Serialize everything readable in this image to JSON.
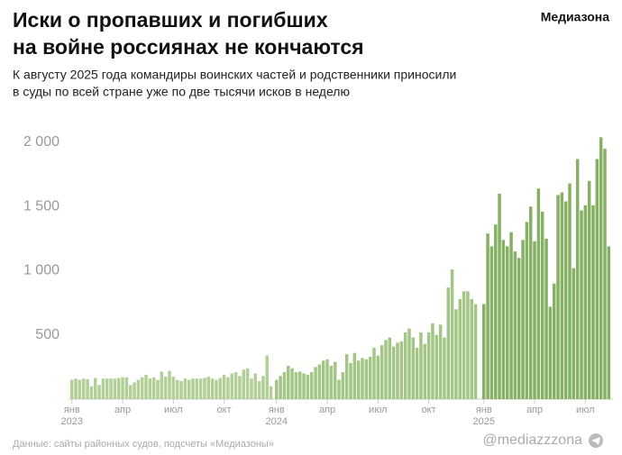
{
  "chart_data": {
    "type": "bar",
    "title": [
      "Иски о пропавших и погибших",
      "на войне россиянах не кончаются"
    ],
    "subtitle": [
      "К августу 2025 года командиры воинских частей и родственники приносили",
      "в суды по всей стране уже по две тысячи исков в неделю"
    ],
    "brand": "Медиазона",
    "source": "Данные: сайты районных судов, подсчеты «Медиазоны»",
    "handle": "@mediazzzona",
    "ylim": [
      0,
      2000
    ],
    "yticks": [
      {
        "value": 500,
        "label": "500"
      },
      {
        "value": 1000,
        "label": "1 000"
      },
      {
        "value": 1500,
        "label": "1 500"
      },
      {
        "value": 2000,
        "label": "2 000"
      }
    ],
    "series": [
      {
        "year": "2023",
        "color": "#b3cf98",
        "months": [
          "янв",
          "апр",
          "июл",
          "окт"
        ],
        "values": [
          150,
          160,
          150,
          160,
          155,
          100,
          165,
          110,
          160,
          160,
          160,
          160,
          165,
          170,
          170,
          110,
          130,
          150,
          170,
          190,
          160,
          170,
          150,
          215,
          175,
          220,
          175,
          150,
          140,
          160,
          150,
          160,
          160,
          160,
          165,
          175,
          160,
          150,
          165,
          190,
          170,
          200,
          210,
          180,
          230,
          240,
          160,
          200,
          140,
          180,
          340,
          100
        ]
      },
      {
        "year": "2024",
        "color": "#a3c585",
        "months": [
          "янв",
          "апр",
          "июл",
          "окт"
        ],
        "values": [
          150,
          180,
          210,
          260,
          240,
          210,
          215,
          200,
          190,
          210,
          250,
          270,
          300,
          310,
          260,
          290,
          150,
          210,
          350,
          280,
          360,
          300,
          320,
          310,
          330,
          400,
          340,
          420,
          460,
          480,
          410,
          440,
          450,
          520,
          550,
          480,
          400,
          520,
          430,
          520,
          590,
          500,
          580,
          480,
          870,
          1010,
          700,
          780,
          840,
          840,
          780,
          740
        ]
      },
      {
        "year": "2025",
        "color": "#86b063",
        "months": [
          "янв",
          "апр",
          "июл"
        ],
        "values": [
          740,
          1290,
          1190,
          1360,
          1600,
          1240,
          1190,
          1300,
          1150,
          1100,
          1240,
          1380,
          1500,
          1230,
          1640,
          1460,
          1250,
          720,
          900,
          1590,
          1610,
          1540,
          1680,
          1020,
          1870,
          1470,
          1510,
          1700,
          1510,
          1870,
          2040,
          1950,
          1190
        ]
      }
    ]
  }
}
